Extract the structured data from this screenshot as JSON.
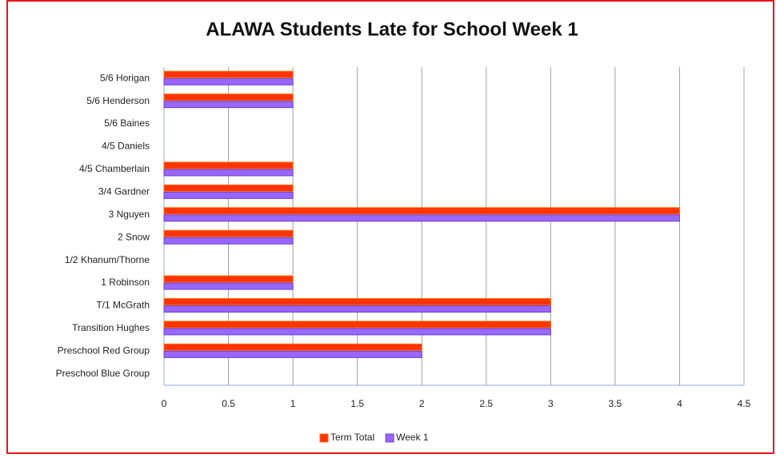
{
  "chart_data": {
    "type": "hbar",
    "title": "ALAWA Students Late for School Week 1",
    "categories": [
      "5/6 Horigan",
      "5/6 Henderson",
      "5/6 Baines",
      "4/5 Daniels",
      "4/5 Chamberlain",
      "3/4 Gardner",
      "3 Nguyen",
      "2 Snow",
      "1/2 Khanum/Thorne",
      "1 Robinson",
      "T/1 McGrath",
      "Transition Hughes",
      "Preschool Red Group",
      "Preschool Blue Group"
    ],
    "series": [
      {
        "name": "Term Total",
        "color": "#ff3300",
        "values": [
          1,
          1,
          0,
          0,
          1,
          1,
          4,
          1,
          0,
          1,
          3,
          3,
          2,
          0
        ]
      },
      {
        "name": "Week 1",
        "color": "#9966ff",
        "values": [
          1,
          1,
          0,
          0,
          1,
          1,
          4,
          1,
          0,
          1,
          3,
          3,
          2,
          0
        ]
      }
    ],
    "xlim": [
      0,
      4.5
    ],
    "xticks": [
      0,
      0.5,
      1,
      1.5,
      2,
      2.5,
      3,
      3.5,
      4,
      4.5
    ],
    "grid": true,
    "legend": "bottom"
  }
}
